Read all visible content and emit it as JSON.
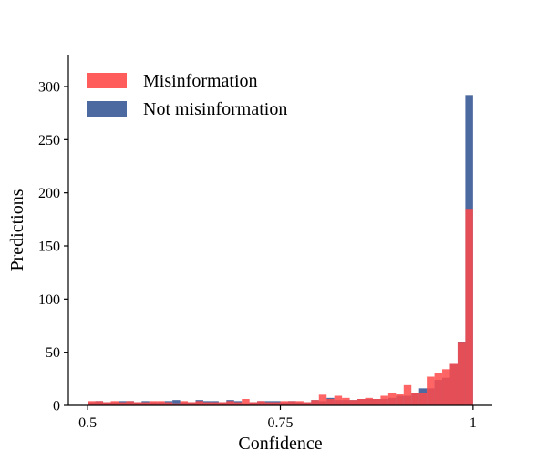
{
  "chart_data": {
    "type": "bar",
    "subtype": "overlaid-histogram",
    "xlabel": "Confidence",
    "ylabel": "Predictions",
    "xlim": [
      0.475,
      1.025
    ],
    "ylim": [
      0,
      330
    ],
    "xticks": [
      {
        "value": 0.5,
        "label": "0.5"
      },
      {
        "value": 0.75,
        "label": "0.75"
      },
      {
        "value": 1.0,
        "label": "1"
      }
    ],
    "yticks": [
      {
        "value": 0,
        "label": "0"
      },
      {
        "value": 50,
        "label": "50"
      },
      {
        "value": 100,
        "label": "100"
      },
      {
        "value": 150,
        "label": "150"
      },
      {
        "value": 200,
        "label": "200"
      },
      {
        "value": 250,
        "label": "250"
      },
      {
        "value": 300,
        "label": "300"
      }
    ],
    "legend_position": "top-left",
    "grid": false,
    "bin_start": 0.5,
    "bin_width": 0.01,
    "series": [
      {
        "name": "Not misinformation",
        "color": "#4c6aa0",
        "values": [
          3,
          4,
          3,
          3,
          4,
          4,
          3,
          4,
          3,
          3,
          4,
          5,
          3,
          3,
          5,
          4,
          4,
          3,
          5,
          4,
          2,
          3,
          4,
          4,
          4,
          3,
          4,
          3,
          3,
          5,
          4,
          7,
          5,
          5,
          5,
          6,
          6,
          6,
          6,
          7,
          9,
          9,
          12,
          16,
          16,
          24,
          26,
          39,
          60,
          292
        ]
      },
      {
        "name": "Misinformation",
        "color": "#ff4a4a",
        "values": [
          4,
          4,
          3,
          4,
          3,
          4,
          3,
          3,
          4,
          4,
          3,
          2,
          4,
          3,
          4,
          3,
          3,
          3,
          4,
          3,
          6,
          3,
          4,
          3,
          3,
          4,
          4,
          4,
          3,
          5,
          10,
          6,
          9,
          7,
          5,
          6,
          7,
          6,
          9,
          12,
          11,
          19,
          12,
          12,
          27,
          30,
          34,
          39,
          59,
          185
        ]
      }
    ]
  }
}
